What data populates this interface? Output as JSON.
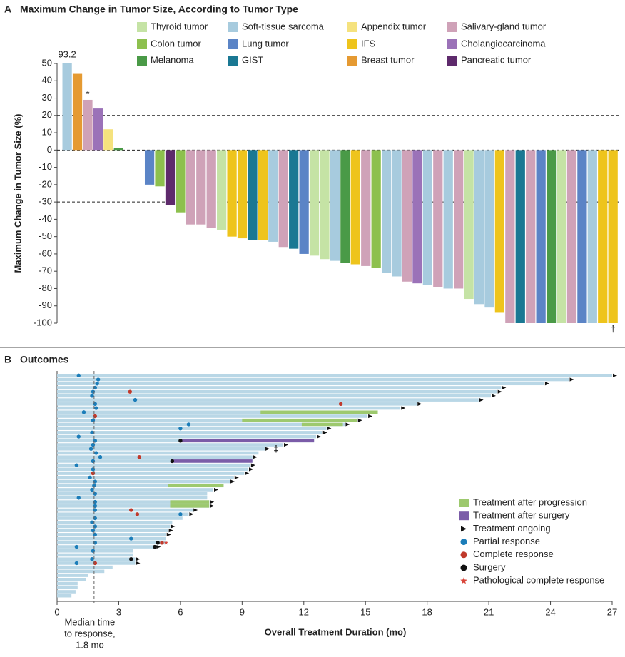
{
  "chart_data": [
    {
      "type": "waterfall",
      "panel": "A",
      "title": "Maximum Change in Tumor Size, According to Tumor Type",
      "y_label": "Maximum Change in Tumor Size (%)",
      "ylim": [
        -100,
        50
      ],
      "yticks": [
        50,
        40,
        30,
        20,
        10,
        0,
        -10,
        -20,
        -30,
        -40,
        -50,
        -60,
        -70,
        -80,
        -90,
        -100
      ],
      "reference_lines": [
        20,
        -30
      ],
      "legend": [
        {
          "name": "Thyroid tumor",
          "color": "#c5e3a5"
        },
        {
          "name": "Colon tumor",
          "color": "#8dc04e"
        },
        {
          "name": "Melanoma",
          "color": "#4a9a47"
        },
        {
          "name": "Soft-tissue sarcoma",
          "color": "#a7cbde"
        },
        {
          "name": "Lung tumor",
          "color": "#5b84c6"
        },
        {
          "name": "GIST",
          "color": "#1a7893"
        },
        {
          "name": "Appendix tumor",
          "color": "#f5e27e"
        },
        {
          "name": "IFS",
          "color": "#eec41c"
        },
        {
          "name": "Breast tumor",
          "color": "#e59a32"
        },
        {
          "name": "Salivary-gland tumor",
          "color": "#cfa2b8"
        },
        {
          "name": "Cholangiocarcinoma",
          "color": "#9b72b8"
        },
        {
          "name": "Pancreatic tumor",
          "color": "#5e2a6c"
        }
      ],
      "values": [
        93.2,
        44,
        29,
        24,
        12,
        1,
        0,
        0,
        -20,
        -21,
        -32,
        -36,
        -43,
        -43,
        -45,
        -46,
        -50,
        -51,
        -52,
        -52,
        -53,
        -56,
        -57,
        -60,
        -61,
        -63,
        -64,
        -65,
        -66,
        -67,
        -68,
        -71,
        -73,
        -76,
        -77,
        -78,
        -79,
        -80,
        -80,
        -86,
        -89,
        -91,
        -94,
        -100,
        -100,
        -100,
        -100,
        -100,
        -100,
        -100,
        -100,
        -100,
        -100,
        -100
      ],
      "colors": [
        "#a7cbde",
        "#e59a32",
        "#cfa2b8",
        "#9b72b8",
        "#f5e27e",
        "#4a9a47",
        "#a7cbde",
        "#a7cbde",
        "#5b84c6",
        "#8dc04e",
        "#5e2a6c",
        "#8dc04e",
        "#cfa2b8",
        "#cfa2b8",
        "#cfa2b8",
        "#c5e3a5",
        "#eec41c",
        "#eec41c",
        "#1a7893",
        "#eec41c",
        "#a7cbde",
        "#cfa2b8",
        "#1a7893",
        "#5b84c6",
        "#c5e3a5",
        "#c5e3a5",
        "#a7cbde",
        "#4a9a47",
        "#eec41c",
        "#cfa2b8",
        "#8dc04e",
        "#a7cbde",
        "#a7cbde",
        "#cfa2b8",
        "#9b72b8",
        "#a7cbde",
        "#cfa2b8",
        "#a7cbde",
        "#cfa2b8",
        "#c5e3a5",
        "#a7cbde",
        "#a7cbde",
        "#eec41c",
        "#cfa2b8",
        "#1a7893",
        "#cfa2b8",
        "#5b84c6",
        "#4a9a47",
        "#c5e3a5",
        "#cfa2b8",
        "#5b84c6",
        "#a7cbde",
        "#eec41c",
        "#eec41c"
      ],
      "annotations": [
        {
          "label": "*",
          "bar": 2
        },
        {
          "label": "†",
          "bar": 53
        }
      ]
    },
    {
      "type": "swimmer",
      "panel": "B",
      "title": "Outcomes",
      "x_label": "Overall Treatment Duration (mo)",
      "xlim": [
        0,
        27
      ],
      "xticks": [
        0,
        3,
        6,
        9,
        12,
        15,
        18,
        21,
        24,
        27
      ],
      "median": {
        "value": 1.8,
        "label": [
          "Median time",
          "to response,",
          "1.8 mo"
        ]
      },
      "lane_color": "#b9d7e6",
      "legend": [
        {
          "name": "Treatment after progression",
          "color": "#9dc96e"
        },
        {
          "name": "Treatment after surgery",
          "color": "#7b5ca8"
        },
        {
          "name": "Treatment ongoing",
          "color": "#111111"
        },
        {
          "name": "Partial response",
          "color": "#1b7db9"
        },
        {
          "name": "Complete response",
          "color": "#c0392b"
        },
        {
          "name": "Surgery",
          "color": "#111111"
        },
        {
          "name": "Pathological complete response",
          "color": "#d9453a"
        }
      ],
      "lanes": [
        {
          "duration": 27.0,
          "ongoing": true,
          "partial_response": [
            1.05
          ]
        },
        {
          "duration": 24.9,
          "ongoing": true,
          "partial_response": [
            2.0
          ]
        },
        {
          "duration": 23.7,
          "ongoing": true,
          "partial_response": [
            1.95
          ]
        },
        {
          "duration": 21.6,
          "ongoing": true,
          "partial_response": [
            1.85
          ]
        },
        {
          "duration": 21.4,
          "ongoing": true,
          "partial_response": [
            1.75
          ],
          "complete_response": [
            3.55
          ]
        },
        {
          "duration": 21.1,
          "ongoing": true,
          "partial_response": [
            1.7
          ]
        },
        {
          "duration": 20.5,
          "ongoing": true,
          "partial_response": [
            3.8
          ]
        },
        {
          "duration": 17.5,
          "ongoing": true,
          "partial_response": [
            1.85
          ],
          "complete_response": [
            13.8
          ]
        },
        {
          "duration": 16.7,
          "ongoing": true,
          "partial_response": [
            1.9
          ]
        },
        {
          "duration": 15.6,
          "partial_response": [
            1.3
          ],
          "after_progression": [
            9.9,
            15.6
          ]
        },
        {
          "duration": 15.1,
          "ongoing": true,
          "complete_response": [
            1.85
          ]
        },
        {
          "duration": 14.6,
          "ongoing": true,
          "partial_response": [
            1.75
          ],
          "after_progression": [
            9.0,
            14.6
          ]
        },
        {
          "duration": 14.0,
          "ongoing": true,
          "partial_response": [
            6.4
          ],
          "after_progression": [
            11.9,
            13.9
          ]
        },
        {
          "duration": 13.1,
          "ongoing": true,
          "partial_response": [
            6.0
          ]
        },
        {
          "duration": 12.9,
          "ongoing": true,
          "partial_response": [
            1.7
          ]
        },
        {
          "duration": 12.6,
          "ongoing": true,
          "partial_response": [
            1.05
          ]
        },
        {
          "duration": 12.5,
          "partial_response": [
            1.85
          ],
          "surgery": [
            6.0
          ],
          "after_surgery": [
            6.0,
            12.5
          ]
        },
        {
          "duration": 11.0,
          "ongoing": true,
          "partial_response": [
            1.75
          ]
        },
        {
          "duration": 10.1,
          "ongoing": true,
          "partial_response": [
            1.65
          ]
        },
        {
          "duration": 9.8,
          "partial_response": [
            1.9
          ]
        },
        {
          "duration": 9.5,
          "ongoing": true,
          "partial_response": [
            2.1
          ],
          "complete_response": [
            4.0
          ]
        },
        {
          "duration": 9.5,
          "partial_response": [
            1.75
          ],
          "surgery": [
            5.6
          ],
          "after_surgery": [
            5.6,
            9.5
          ]
        },
        {
          "duration": 9.4,
          "ongoing": true,
          "partial_response": [
            0.95
          ]
        },
        {
          "duration": 9.3,
          "ongoing": true,
          "partial_response": [
            1.75
          ]
        },
        {
          "duration": 9.1,
          "ongoing": true,
          "complete_response": [
            1.75
          ]
        },
        {
          "duration": 8.6,
          "ongoing": true,
          "partial_response": [
            1.6
          ]
        },
        {
          "duration": 8.4,
          "ongoing": true,
          "partial_response": [
            1.85
          ]
        },
        {
          "duration": 8.1,
          "partial_response": [
            1.8
          ],
          "after_progression": [
            5.4,
            8.1
          ]
        },
        {
          "duration": 7.6,
          "ongoing": true,
          "partial_response": [
            1.7
          ]
        },
        {
          "duration": 7.3,
          "partial_response": [
            1.85
          ]
        },
        {
          "duration": 7.3,
          "partial_response": [
            1.05
          ]
        },
        {
          "duration": 7.4,
          "ongoing": true,
          "partial_response": [
            1.85
          ],
          "after_progression": [
            5.5,
            7.4
          ]
        },
        {
          "duration": 7.4,
          "ongoing": true,
          "partial_response": [
            1.85
          ],
          "after_progression": [
            5.5,
            7.4
          ]
        },
        {
          "duration": 6.6,
          "ongoing": true,
          "partial_response": [
            1.85
          ],
          "complete_response": [
            3.6
          ]
        },
        {
          "duration": 6.4,
          "ongoing": true,
          "complete_response": [
            3.9
          ],
          "partial_response": [
            6.0
          ]
        },
        {
          "duration": 6.1,
          "partial_response": [
            1.85
          ]
        },
        {
          "duration": 5.6,
          "partial_response": [
            1.7
          ]
        },
        {
          "duration": 5.5,
          "ongoing": true,
          "partial_response": [
            1.85
          ]
        },
        {
          "duration": 5.4,
          "ongoing": true,
          "partial_response": [
            1.75
          ]
        },
        {
          "duration": 5.3,
          "ongoing": true,
          "partial_response": [
            1.85
          ]
        },
        {
          "duration": 5.3,
          "partial_response": [
            3.6
          ]
        },
        {
          "duration": 5.3,
          "partial_response": [
            1.85
          ],
          "surgery": [
            4.9
          ],
          "complete_response": [
            5.1
          ],
          "pathological_complete_response": [
            5.3
          ]
        },
        {
          "duration": 4.8,
          "ongoing": true,
          "partial_response": [
            0.95
          ],
          "surgery": [
            4.75
          ]
        },
        {
          "duration": 3.7,
          "partial_response": [
            1.75
          ]
        },
        {
          "duration": 3.7
        },
        {
          "duration": 3.8,
          "ongoing": true,
          "partial_response": [
            1.7
          ],
          "surgery": [
            3.6
          ]
        },
        {
          "duration": 3.8,
          "ongoing": true,
          "partial_response": [
            0.95
          ],
          "complete_response": [
            1.85
          ]
        },
        {
          "duration": 2.7
        },
        {
          "duration": 2.3
        },
        {
          "duration": 1.5
        },
        {
          "duration": 1.4
        },
        {
          "duration": 1.0
        },
        {
          "duration": 1.0
        },
        {
          "duration": 0.9
        },
        {
          "duration": 0.7
        }
      ],
      "annotations": [
        {
          "label": "‡",
          "lane": 18
        }
      ]
    }
  ]
}
